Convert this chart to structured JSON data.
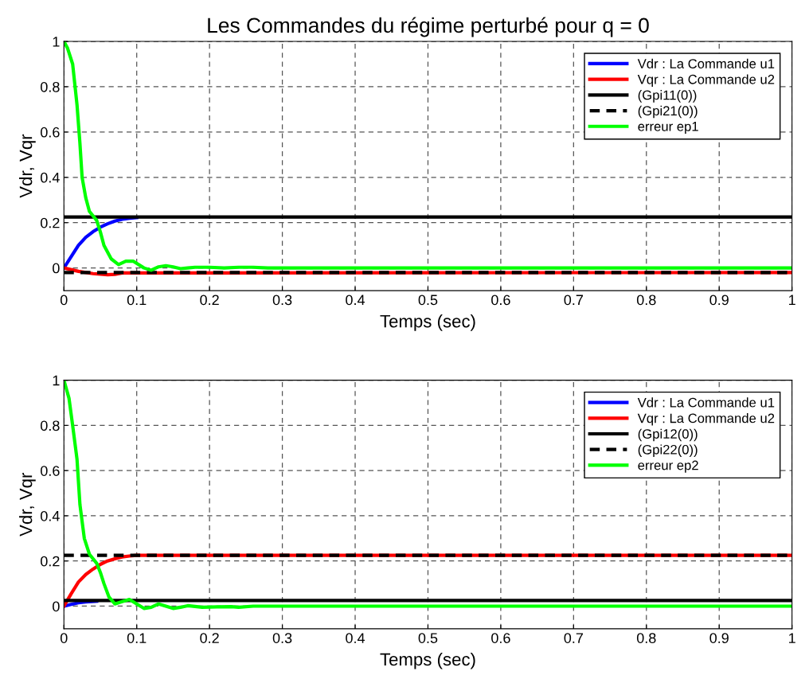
{
  "chart_data": [
    {
      "type": "line",
      "title": "Les Commandes du régime perturbé pour q = 0",
      "xlabel": "Temps (sec)",
      "ylabel": "Vdr, Vqr",
      "xlim": [
        0,
        1
      ],
      "ylim": [
        -0.1,
        1
      ],
      "xticks": [
        0,
        0.1,
        0.2,
        0.3,
        0.4,
        0.5,
        0.6,
        0.7,
        0.8,
        0.9,
        1
      ],
      "yticks": [
        0,
        0.2,
        0.4,
        0.6,
        0.8,
        1
      ],
      "grid": true,
      "legend": "top right",
      "series": [
        {
          "name": "Vdr : La Commande u1",
          "color": "#0000ff",
          "x": [
            0,
            0.01,
            0.02,
            0.03,
            0.04,
            0.05,
            0.06,
            0.07,
            0.08,
            0.09,
            0.1
          ],
          "values": [
            0,
            0.05,
            0.1,
            0.135,
            0.16,
            0.18,
            0.195,
            0.207,
            0.215,
            0.219,
            0.222
          ]
        },
        {
          "name": "Vqr : La Commande u2",
          "color": "#ff0000",
          "x": [
            0,
            0.02,
            0.04,
            0.06,
            0.07,
            0.08,
            1
          ],
          "values": [
            0,
            -0.015,
            -0.025,
            -0.03,
            -0.028,
            -0.022,
            -0.02
          ]
        },
        {
          "name": "(Gpi11(0))",
          "color": "#000000",
          "x": [
            0,
            1
          ],
          "values": [
            0.225,
            0.225
          ]
        },
        {
          "name": "(Gpi21(0))",
          "color": "#000000",
          "line_style": "dashed",
          "x": [
            0,
            1
          ],
          "values": [
            -0.02,
            -0.02
          ]
        },
        {
          "name": "erreur ep1",
          "color": "#00ff00",
          "x": [
            0,
            0.005,
            0.012,
            0.018,
            0.022,
            0.025,
            0.03,
            0.035,
            0.045,
            0.05,
            0.055,
            0.065,
            0.075,
            0.085,
            0.095,
            0.11,
            0.12,
            0.13,
            0.14,
            0.15,
            0.16,
            0.17,
            0.18,
            0.2,
            0.22,
            0.24,
            0.26,
            0.28,
            1
          ],
          "values": [
            1,
            0.97,
            0.9,
            0.72,
            0.55,
            0.4,
            0.31,
            0.25,
            0.21,
            0.16,
            0.1,
            0.04,
            0.015,
            0.03,
            0.03,
            0,
            -0.01,
            0.005,
            0.01,
            0.005,
            -0.003,
            0,
            0.003,
            0.003,
            0,
            0.003,
            0.003,
            0,
            0
          ]
        }
      ]
    },
    {
      "type": "line",
      "xlabel": "Temps (sec)",
      "ylabel": "Vdr, Vqr",
      "xlim": [
        0,
        1
      ],
      "ylim": [
        -0.1,
        1
      ],
      "xticks": [
        0,
        0.1,
        0.2,
        0.3,
        0.4,
        0.5,
        0.6,
        0.7,
        0.8,
        0.9,
        1
      ],
      "yticks": [
        0,
        0.2,
        0.4,
        0.6,
        0.8,
        1
      ],
      "grid": true,
      "legend": "top right",
      "series": [
        {
          "name": "Vdr : La Commande u1",
          "color": "#0000ff",
          "x": [
            0,
            0.01,
            0.02,
            0.03,
            0.045
          ],
          "values": [
            0,
            0.008,
            0.015,
            0.019,
            0.022
          ]
        },
        {
          "name": "Vqr : La Commande u2",
          "color": "#ff0000",
          "x": [
            0,
            0.01,
            0.02,
            0.03,
            0.04,
            0.05,
            0.06,
            0.07,
            0.08,
            0.09,
            0.1,
            1
          ],
          "values": [
            0,
            0.055,
            0.107,
            0.14,
            0.164,
            0.185,
            0.2,
            0.21,
            0.218,
            0.222,
            0.225,
            0.225
          ]
        },
        {
          "name": "(Gpi12(0))",
          "color": "#000000",
          "x": [
            0,
            1
          ],
          "values": [
            0.025,
            0.025
          ]
        },
        {
          "name": "(Gpi22(0))",
          "color": "#000000",
          "line_style": "dashed",
          "x": [
            0,
            1
          ],
          "values": [
            0.225,
            0.225
          ]
        },
        {
          "name": "erreur ep2",
          "color": "#00ff00",
          "x": [
            0,
            0.007,
            0.012,
            0.018,
            0.022,
            0.028,
            0.035,
            0.045,
            0.05,
            0.055,
            0.062,
            0.07,
            0.08,
            0.09,
            0.1,
            0.11,
            0.12,
            0.13,
            0.14,
            0.15,
            0.16,
            0.17,
            0.19,
            0.21,
            0.23,
            0.24,
            0.26,
            1
          ],
          "values": [
            1,
            0.92,
            0.8,
            0.65,
            0.45,
            0.3,
            0.23,
            0.19,
            0.15,
            0.1,
            0.04,
            0.01,
            0.02,
            0.03,
            0.01,
            -0.01,
            -0.005,
            0.01,
            0,
            -0.01,
            -0.005,
            0.002,
            -0.005,
            -0.003,
            -0.002,
            -0.005,
            0,
            0
          ]
        }
      ]
    }
  ]
}
